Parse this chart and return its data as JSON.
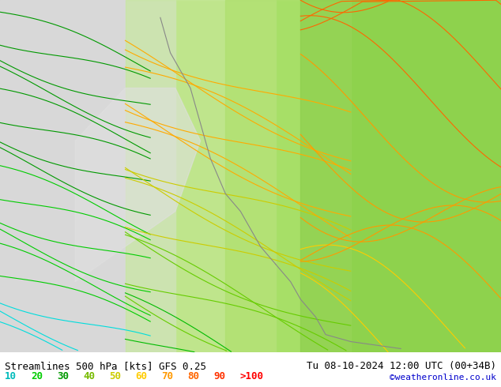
{
  "title_left": "Streamlines 500 hPa [kts] GFS 0.25",
  "title_right": "Tu 08-10-2024 12:00 UTC (00+34B)",
  "watermark": "©weatheronline.co.uk",
  "legend_labels": [
    "10",
    "20",
    "30",
    "40",
    "50",
    "60",
    "70",
    "80",
    "90",
    ">100"
  ],
  "legend_colors": [
    "#00ffff",
    "#00dd00",
    "#00aa00",
    "#88cc00",
    "#cccc00",
    "#ffcc00",
    "#ff9900",
    "#ff6600",
    "#ff3300",
    "#ff0000"
  ],
  "speed_thresholds": [
    10,
    20,
    30,
    40,
    50,
    60,
    70,
    80,
    90,
    100
  ],
  "bg_color": "#d0d0d0",
  "land_color_low": "#e8e8e8",
  "land_color_high": "#ccffaa",
  "sea_color": "#c8e8ff",
  "fig_width": 6.34,
  "fig_height": 4.9,
  "dpi": 100,
  "bottom_bar_color": "#ffffff",
  "title_fontsize": 9,
  "legend_fontsize": 9,
  "watermark_color": "#0000cc",
  "watermark_fontsize": 8
}
